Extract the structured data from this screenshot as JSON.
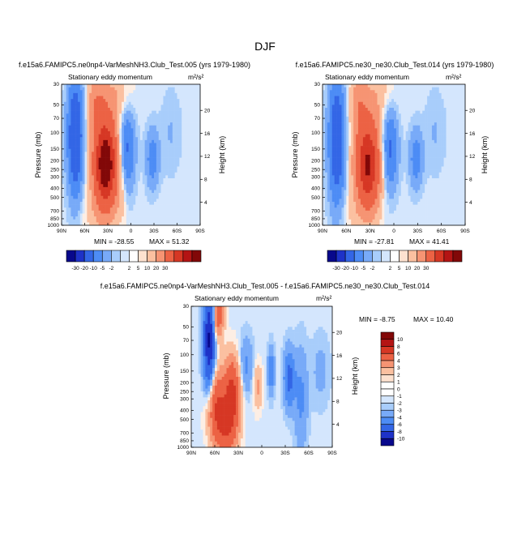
{
  "page": {
    "title": "DJF"
  },
  "chart_data": [
    {
      "type": "heatmap",
      "id": "top-left",
      "title": "f.e15a6.FAMIPC5.ne0np4-VarMeshNH3.Club_Test.005 (yrs 1979-1980)",
      "subtitle": "Stationary eddy momentum",
      "units": "m²/s²",
      "xlabel": "",
      "ylabel": "Pressure (mb)",
      "ylabel_right": "Height (km)",
      "xticks": [
        "90N",
        "60N",
        "30N",
        "0",
        "30S",
        "60S",
        "90S"
      ],
      "yticks": [
        "30",
        "50",
        "70",
        "100",
        "150",
        "200",
        "250",
        "300",
        "400",
        "500",
        "700",
        "850",
        "1000"
      ],
      "height_ticks": [
        "20",
        "16",
        "12",
        "8",
        "4"
      ],
      "min_label": "MIN = -28.55",
      "max_label": "MAX = 51.32",
      "min": -28.55,
      "max": 51.32,
      "features": [
        {
          "lat": 72,
          "p": 110,
          "dlat": 7,
          "dp": 1.0,
          "amp": -26
        },
        {
          "lat": 33,
          "p": 220,
          "dlat": 11,
          "dp": 0.8,
          "amp": 46
        },
        {
          "lat": 45,
          "p": 45,
          "dlat": 8,
          "dp": 0.5,
          "amp": 10
        },
        {
          "lat": 20,
          "p": 40,
          "dlat": 15,
          "dp": 0.5,
          "amp": 6
        },
        {
          "lat": 5,
          "p": 150,
          "dlat": 7,
          "dp": 0.7,
          "amp": -16
        },
        {
          "lat": -28,
          "p": 190,
          "dlat": 6,
          "dp": 0.5,
          "amp": -11
        },
        {
          "lat": -52,
          "p": 100,
          "dlat": 9,
          "dp": 0.7,
          "amp": -3
        },
        {
          "lat": 12,
          "p": 450,
          "dlat": 5,
          "dp": 0.6,
          "amp": 3
        },
        {
          "lat": 55,
          "p": 800,
          "dlat": 10,
          "dp": 0.4,
          "amp": 2
        }
      ]
    },
    {
      "type": "heatmap",
      "id": "top-right",
      "title": "f.e15a6.FAMIPC5.ne30_ne30.Club_Test.014 (yrs 1979-1980)",
      "subtitle": "Stationary eddy momentum",
      "units": "m²/s²",
      "xlabel": "",
      "ylabel": "Pressure (mb)",
      "ylabel_right": "Height (km)",
      "xticks": [
        "90N",
        "60N",
        "30N",
        "0",
        "30S",
        "60S",
        "90S"
      ],
      "yticks": [
        "30",
        "50",
        "70",
        "100",
        "150",
        "200",
        "250",
        "300",
        "400",
        "500",
        "700",
        "850",
        "1000"
      ],
      "height_ticks": [
        "20",
        "16",
        "12",
        "8",
        "4"
      ],
      "min_label": "MIN = -27.81",
      "max_label": "MAX = 41.41",
      "min": -27.81,
      "max": 41.41,
      "features": [
        {
          "lat": 72,
          "p": 120,
          "dlat": 7,
          "dp": 1.1,
          "amp": -24
        },
        {
          "lat": 33,
          "p": 220,
          "dlat": 11,
          "dp": 0.8,
          "amp": 38
        },
        {
          "lat": 45,
          "p": 45,
          "dlat": 8,
          "dp": 0.5,
          "amp": 9
        },
        {
          "lat": 20,
          "p": 40,
          "dlat": 15,
          "dp": 0.5,
          "amp": 5
        },
        {
          "lat": 5,
          "p": 150,
          "dlat": 7,
          "dp": 0.7,
          "amp": -16
        },
        {
          "lat": -28,
          "p": 190,
          "dlat": 6,
          "dp": 0.5,
          "amp": -11
        },
        {
          "lat": -52,
          "p": 100,
          "dlat": 9,
          "dp": 0.7,
          "amp": -3
        },
        {
          "lat": 55,
          "p": 800,
          "dlat": 10,
          "dp": 0.4,
          "amp": 2
        }
      ]
    },
    {
      "type": "heatmap",
      "id": "bottom-diff",
      "title": "f.e15a6.FAMIPC5.ne0np4-VarMeshNH3.Club_Test.005 - f.e15a6.FAMIPC5.ne30_ne30.Club_Test.014",
      "subtitle": "Stationary eddy momentum",
      "units": "m²/s²",
      "xlabel": "",
      "ylabel": "Pressure (mb)",
      "ylabel_right": "Height (km)",
      "xticks": [
        "90N",
        "60N",
        "30N",
        "0",
        "30S",
        "60S",
        "90S"
      ],
      "yticks": [
        "30",
        "50",
        "70",
        "100",
        "150",
        "200",
        "250",
        "300",
        "400",
        "500",
        "700",
        "850",
        "1000"
      ],
      "height_ticks": [
        "20",
        "16",
        "12",
        "8",
        "4"
      ],
      "min_label": "MIN = -8.75",
      "max_label": "MAX = 10.40",
      "min": -8.75,
      "max": 10.4,
      "features": [
        {
          "lat": 67,
          "p": 70,
          "dlat": 5,
          "dp": 0.9,
          "amp": -9
        },
        {
          "lat": 58,
          "p": 350,
          "dlat": 8,
          "dp": 0.6,
          "amp": 6
        },
        {
          "lat": 38,
          "p": 260,
          "dlat": 7,
          "dp": 0.6,
          "amp": 7
        },
        {
          "lat": 45,
          "p": 650,
          "dlat": 9,
          "dp": 0.5,
          "amp": 5
        },
        {
          "lat": 56,
          "p": 38,
          "dlat": 5,
          "dp": 0.4,
          "amp": 5
        },
        {
          "lat": 20,
          "p": 130,
          "dlat": 6,
          "dp": 0.5,
          "amp": -2
        },
        {
          "lat": 5,
          "p": 220,
          "dlat": 4,
          "dp": 0.4,
          "amp": 2
        },
        {
          "lat": -12,
          "p": 150,
          "dlat": 3,
          "dp": 0.4,
          "amp": -3
        },
        {
          "lat": -35,
          "p": 180,
          "dlat": 5,
          "dp": 0.5,
          "amp": -4
        },
        {
          "lat": -50,
          "p": 300,
          "dlat": 6,
          "dp": 0.9,
          "amp": -2
        },
        {
          "lat": -75,
          "p": 150,
          "dlat": 8,
          "dp": 0.6,
          "amp": -1
        }
      ]
    }
  ],
  "colorbars": {
    "horizontal": {
      "labels": [
        "-30",
        "-20",
        "-10",
        "-5",
        "-2",
        "2",
        "5",
        "10",
        "20",
        "30"
      ],
      "colors": [
        "#08088c",
        "#1e32c8",
        "#3366e6",
        "#4d8cf5",
        "#78aaf8",
        "#a8cdfb",
        "#d4e6fd",
        "#ffffff",
        "#fde1cf",
        "#fbc0a0",
        "#f69473",
        "#ec6244",
        "#d63724",
        "#b41414",
        "#820808"
      ]
    },
    "vertical": {
      "labels": [
        "10",
        "8",
        "6",
        "4",
        "3",
        "2",
        "1",
        "0",
        "-1",
        "-2",
        "-3",
        "-4",
        "-6",
        "-8",
        "-10"
      ],
      "colors": [
        "#820808",
        "#b41414",
        "#d63724",
        "#ec6244",
        "#f69473",
        "#fbc0a0",
        "#fde1cf",
        "#ffffff",
        "#ffffff",
        "#d4e6fd",
        "#a8cdfb",
        "#78aaf8",
        "#4d8cf5",
        "#3366e6",
        "#1e32c8",
        "#08088c"
      ]
    }
  }
}
